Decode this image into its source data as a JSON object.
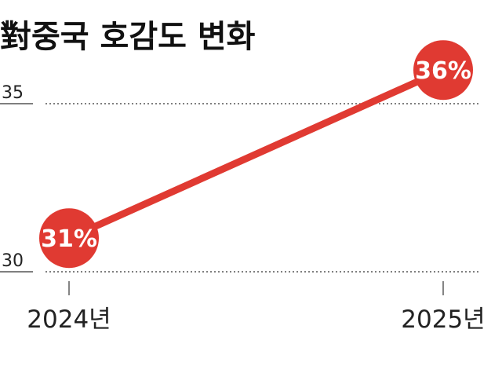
{
  "chart_data": {
    "type": "line",
    "title": "對중국 호감도 변화",
    "categories": [
      "2024년",
      "2025년"
    ],
    "series": [
      {
        "values": [
          31,
          36
        ],
        "labels": [
          "31%",
          "36%"
        ]
      }
    ],
    "yticks": [
      30,
      35
    ],
    "ylim": [
      30,
      36
    ],
    "grid": "dotted horizontal at ticks",
    "color": "#e03a32"
  }
}
